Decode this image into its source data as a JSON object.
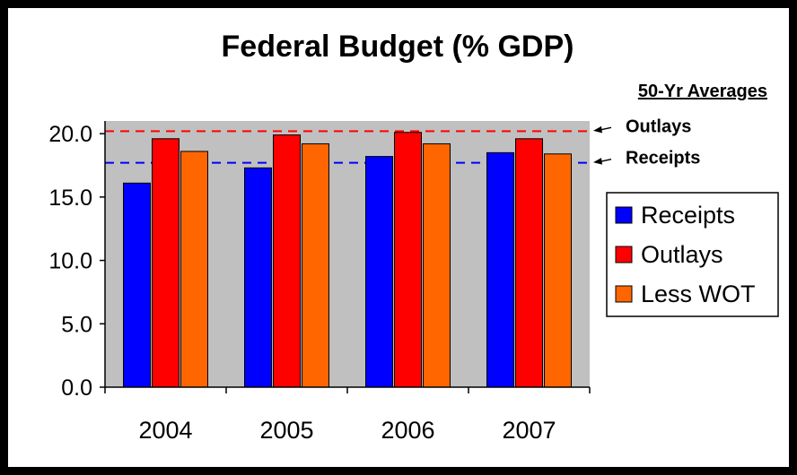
{
  "chart_data": {
    "type": "bar",
    "title": "Federal Budget (% GDP)",
    "categories": [
      "2004",
      "2005",
      "2006",
      "2007"
    ],
    "series": [
      {
        "name": "Receipts",
        "color": "#0000FF",
        "values": [
          16.1,
          17.3,
          18.2,
          18.5
        ]
      },
      {
        "name": "Outlays",
        "color": "#FF0000",
        "values": [
          19.6,
          19.9,
          20.1,
          19.6
        ]
      },
      {
        "name": "Less WOT",
        "color": "#FF6600",
        "values": [
          18.6,
          19.2,
          19.2,
          18.4
        ]
      }
    ],
    "ylim": [
      0,
      21
    ],
    "yticks": [
      "0.0",
      "5.0",
      "10.0",
      "15.0",
      "20.0"
    ],
    "ytick_values": [
      0,
      5,
      10,
      15,
      20
    ],
    "grid": false,
    "plot_background": "#C0C0C0",
    "legend_position": "right",
    "reference_lines": {
      "header": "50-Yr Averages",
      "lines": [
        {
          "label": "Outlays",
          "value": 20.2,
          "color": "#FF0000"
        },
        {
          "label": "Receipts",
          "value": 17.7,
          "color": "#0000FF"
        }
      ]
    }
  }
}
